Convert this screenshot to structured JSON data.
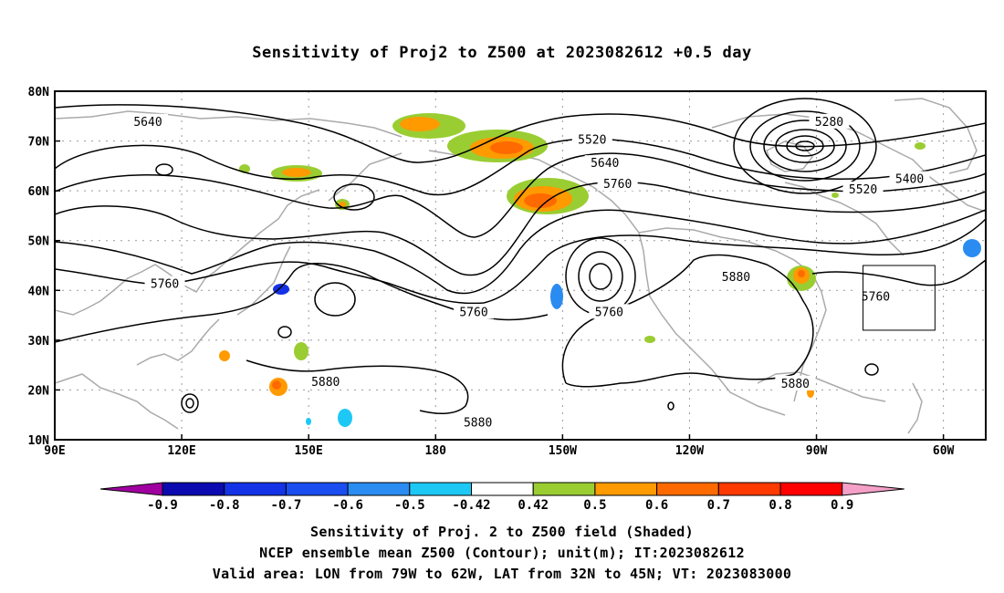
{
  "title": "Sensitivity of Proj2 to Z500 at 2023082612 +0.5 day",
  "map": {
    "lat_labels": [
      "80N",
      "70N",
      "60N",
      "50N",
      "40N",
      "30N",
      "20N",
      "10N"
    ],
    "lon_labels": [
      "90E",
      "120E",
      "150E",
      "180",
      "150W",
      "120W",
      "90W",
      "60W"
    ],
    "contour_labels": [
      {
        "text": "5640",
        "lon": 112,
        "lat": 73.8
      },
      {
        "text": "5520",
        "lon": -143,
        "lat": 70.2
      },
      {
        "text": "5640",
        "lon": -140,
        "lat": 65.5
      },
      {
        "text": "5760",
        "lon": -137,
        "lat": 61.3
      },
      {
        "text": "5280",
        "lon": -87,
        "lat": 73.8
      },
      {
        "text": "5400",
        "lon": -68,
        "lat": 62.3
      },
      {
        "text": "5520",
        "lon": -79,
        "lat": 60.2
      },
      {
        "text": "5880",
        "lon": -109,
        "lat": 42.6
      },
      {
        "text": "5760",
        "lon": -76,
        "lat": 38.7
      },
      {
        "text": "5760",
        "lon": 116,
        "lat": 41.2
      },
      {
        "text": "5760",
        "lon": -171,
        "lat": 35.6
      },
      {
        "text": "5760",
        "lon": -139,
        "lat": 35.6
      },
      {
        "text": "5880",
        "lon": 154,
        "lat": 21.5
      },
      {
        "text": "5880",
        "lon": -170,
        "lat": 13.4
      },
      {
        "text": "5880",
        "lon": -95,
        "lat": 21.2
      }
    ],
    "valid_box": {
      "lon_from": -79,
      "lon_to": -62,
      "lat_from": 32,
      "lat_to": 45
    }
  },
  "colorbar": {
    "tick_labels": [
      "-0.9",
      "-0.8",
      "-0.7",
      "-0.6",
      "-0.5",
      "-0.42",
      "0.42",
      "0.5",
      "0.6",
      "0.7",
      "0.8",
      "0.9"
    ],
    "colors": [
      "#a000a0",
      "#0a0ab0",
      "#1432e6",
      "#1a4ef0",
      "#2a8cf0",
      "#1ec8f5",
      "#ffffff",
      "#9acd32",
      "#ff9a00",
      "#ff6a00",
      "#ff3a00",
      "#ff0000",
      "#f4a0c8"
    ]
  },
  "captions": {
    "line1": "Sensitivity of Proj. 2 to Z500 field (Shaded)",
    "line2": "NCEP ensemble mean Z500 (Contour); unit(m); IT:2023082612",
    "line3": "Valid area: LON from 79W to 62W, LAT from 32N to 45N; VT: 2023083000"
  }
}
